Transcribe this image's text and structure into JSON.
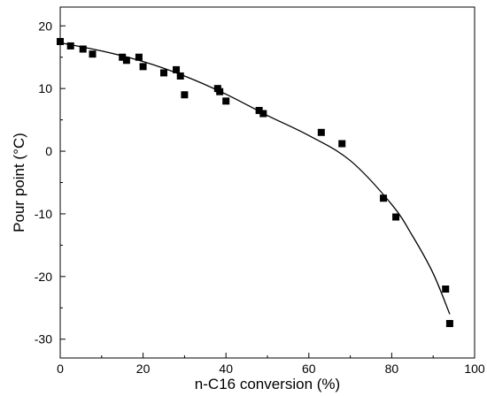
{
  "chart_data": {
    "type": "scatter",
    "title": "",
    "xlabel": "n-C16 conversion (%)",
    "ylabel": "Pour point (°C)",
    "xlim": [
      0,
      100
    ],
    "ylim": [
      -33,
      23
    ],
    "xticks": [
      0,
      20,
      40,
      60,
      80,
      100
    ],
    "yticks": [
      -30,
      -20,
      -10,
      0,
      10,
      20
    ],
    "xtick_labels": [
      "0",
      "20",
      "40",
      "60",
      "80",
      "100"
    ],
    "ytick_labels": [
      "-30",
      "-20",
      "-10",
      "0",
      "10",
      "20"
    ],
    "grid": false,
    "legend": false,
    "marker": "square",
    "colors": {
      "marker": "#000000",
      "line": "#000000",
      "axis": "#000000"
    },
    "series": [
      {
        "kind": "points",
        "x": [
          0,
          2.5,
          5.5,
          7.8,
          15,
          16,
          19,
          20,
          25,
          28,
          29,
          30,
          38,
          38.5,
          40,
          48,
          49,
          63,
          68,
          78,
          81,
          93,
          94
        ],
        "y": [
          17.5,
          16.8,
          16.3,
          15.5,
          15,
          14.5,
          15,
          13.5,
          12.5,
          13,
          12,
          9,
          10,
          9.5,
          8,
          6.5,
          6,
          3,
          1.2,
          -7.5,
          -10.5,
          -22,
          -27.5
        ]
      },
      {
        "kind": "fit-curve",
        "x": [
          0,
          10,
          20,
          30,
          40,
          50,
          60,
          70,
          80,
          85,
          90,
          94
        ],
        "y": [
          17.3,
          16,
          14.3,
          12,
          9.1,
          5.7,
          2.5,
          -1.5,
          -8.5,
          -13.5,
          -19.5,
          -26
        ]
      }
    ]
  }
}
